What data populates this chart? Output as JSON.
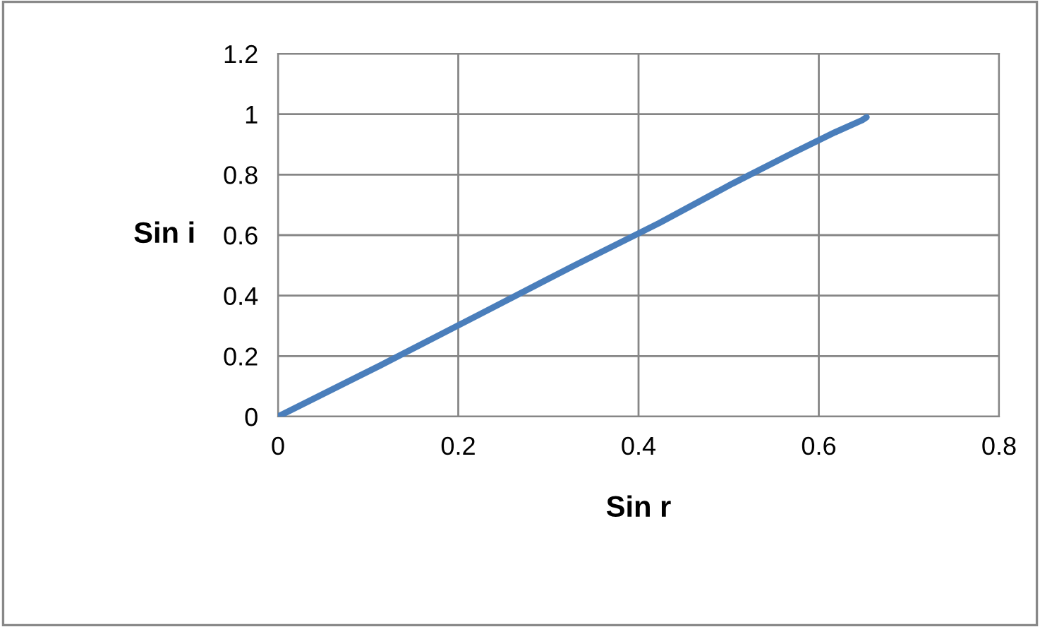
{
  "chart_data": {
    "type": "line",
    "xlabel": "Sin r",
    "ylabel": "Sin i",
    "x": [
      0,
      0.114,
      0.225,
      0.329,
      0.423,
      0.504,
      0.57,
      0.618,
      0.648,
      0.653
    ],
    "series": [
      {
        "color": "#4a7ebb",
        "values": [
          0,
          0.17,
          0.34,
          0.5,
          0.64,
          0.77,
          0.87,
          0.94,
          0.98,
          0.99
        ]
      }
    ],
    "xlim": [
      0,
      0.8
    ],
    "xticks": [
      0,
      0.2,
      0.4,
      0.6,
      0.8
    ],
    "ylim": [
      0,
      1.2
    ],
    "yticks": [
      0,
      0.2,
      0.4,
      0.6,
      0.8,
      1,
      1.2
    ],
    "grid": true,
    "legend": false,
    "marker": "none",
    "line_style": "solid"
  }
}
